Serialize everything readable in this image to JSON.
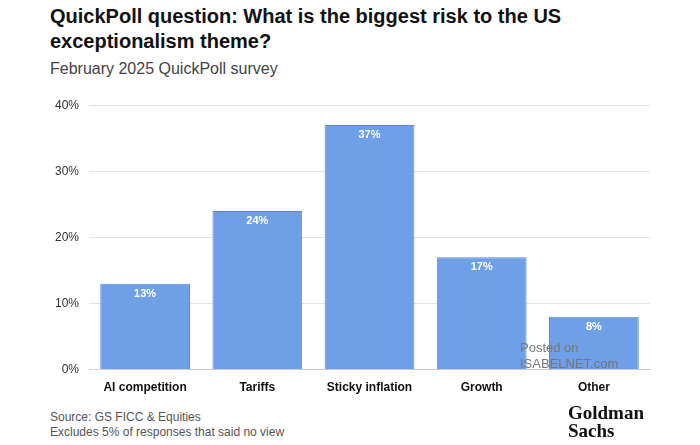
{
  "chart_data": {
    "type": "bar",
    "title": "QuickPoll question: What is the biggest risk to the US exceptionalism theme?",
    "subtitle": "February 2025 QuickPoll survey",
    "categories": [
      "AI competition",
      "Tariffs",
      "Sticky inflation",
      "Growth",
      "Other"
    ],
    "values": [
      13,
      24,
      37,
      17,
      8
    ],
    "value_labels": [
      "13%",
      "24%",
      "37%",
      "17%",
      "8%"
    ],
    "data_labels": true,
    "color": "#6f9fe6",
    "ylim": [
      0,
      40
    ],
    "yticks": [
      {
        "value": 0,
        "label": "0%"
      },
      {
        "value": 10,
        "label": "10%"
      },
      {
        "value": 20,
        "label": "20%"
      },
      {
        "value": 30,
        "label": "30%"
      },
      {
        "value": 40,
        "label": "40%"
      }
    ],
    "grid": true,
    "notes": [
      "Source: GS FICC & Equities",
      "Excludes 5% of responses that said no view"
    ],
    "logo": "Goldman Sachs",
    "watermark": "Posted on ISABELNET.com"
  }
}
